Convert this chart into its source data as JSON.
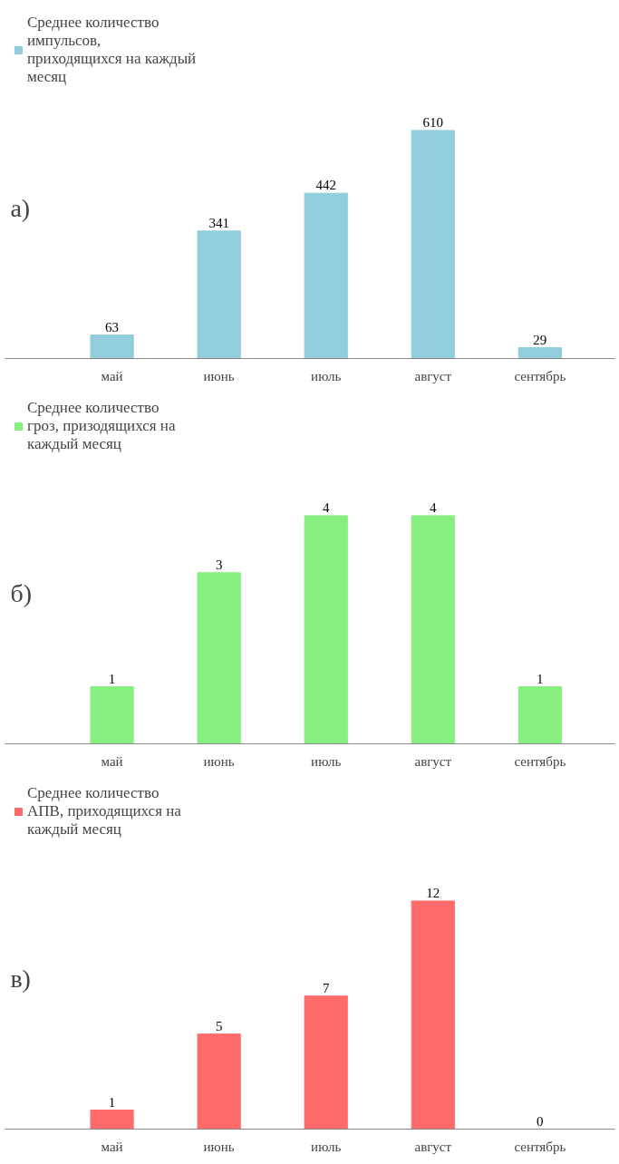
{
  "chart_data": [
    {
      "type": "bar",
      "annotations": [
        "а)"
      ],
      "categories": [
        "май",
        "июнь",
        "июль",
        "август",
        "сентябрь"
      ],
      "series": [
        {
          "name": "Среднее количество импульсов, приходящихся на каждый месяц",
          "color": "#92cddc",
          "values": [
            63,
            341,
            442,
            610,
            29
          ]
        }
      ],
      "data_labels": true,
      "legend": "top left",
      "grid": false
    },
    {
      "type": "bar",
      "annotations": [
        "б)"
      ],
      "categories": [
        "май",
        "июнь",
        "июль",
        "август",
        "сентябрь"
      ],
      "series": [
        {
          "name": "Среднее количество гроз, призодящихся на каждый месяц",
          "color": "#86ef7f",
          "values": [
            1,
            3,
            4,
            4,
            1
          ]
        }
      ],
      "data_labels": true,
      "legend": "top left",
      "grid": false
    },
    {
      "type": "bar",
      "annotations": [
        "в)"
      ],
      "categories": [
        "май",
        "июнь",
        "июль",
        "август",
        "сентябрь"
      ],
      "series": [
        {
          "name": "Среднее количество АПВ, приходящихся на каждый месяц",
          "color": "#ff6b6b",
          "values": [
            1,
            5,
            7,
            12,
            0
          ]
        }
      ],
      "data_labels": true,
      "legend": "top left",
      "grid": false
    }
  ]
}
